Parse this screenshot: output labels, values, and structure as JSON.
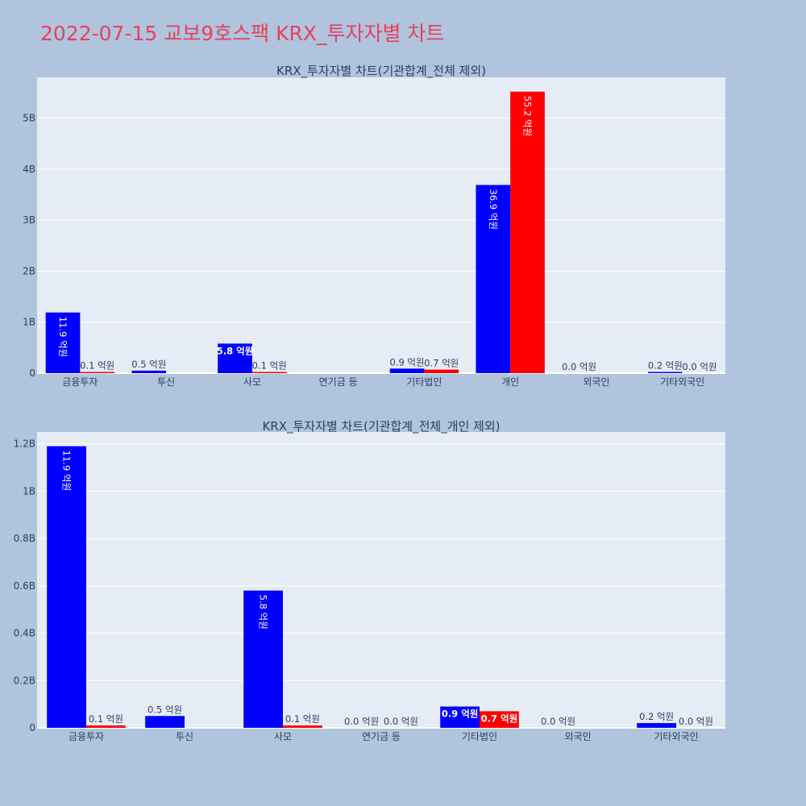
{
  "title": "2022-07-15 교보9호스팩 KRX_투자자별 차트",
  "colors": {
    "page_bg": "#b0c4de",
    "plot_bg": "#e5ecf6",
    "series_a": "#0000ff",
    "series_b": "#ff0000",
    "title": "#e8405a",
    "text": "#2a3f5f"
  },
  "chart_data": [
    {
      "type": "bar",
      "title": "KRX_투자자별 차트(기관합계_전체 제외)",
      "categories": [
        "금융투자",
        "투신",
        "사모",
        "연기금 등",
        "기타법인",
        "개인",
        "외국인",
        "기타외국인"
      ],
      "ylim": [
        0,
        5800000000
      ],
      "yticks": [
        0,
        1000000000,
        2000000000,
        3000000000,
        4000000000,
        5000000000
      ],
      "ytick_labels": [
        "0",
        "1B",
        "2B",
        "3B",
        "4B",
        "5B"
      ],
      "grid": true,
      "series": [
        {
          "color": "#0000ff",
          "values": [
            1190000000,
            50000000,
            580000000,
            0,
            90000000,
            3690000000,
            0,
            20000000
          ],
          "labels": [
            "11.9 억원",
            "0.5 억원",
            "5.8 억원",
            "",
            "0.9 억원",
            "36.9 억원",
            "0.0 억원",
            "0.2 억원"
          ],
          "label_pos": [
            "inside-v",
            "outside",
            "inside-h",
            "none",
            "outside",
            "inside-v",
            "outside",
            "outside"
          ]
        },
        {
          "color": "#ff0000",
          "values": [
            10000000,
            0,
            10000000,
            0,
            70000000,
            5520000000,
            0,
            0
          ],
          "labels": [
            "0.1 억원",
            "",
            "0.1 억원",
            "",
            "0.7 억원",
            "55.2 억원",
            "",
            "0.0 억원"
          ],
          "label_pos": [
            "outside",
            "none",
            "outside",
            "none",
            "outside",
            "inside-v",
            "none",
            "outside"
          ]
        }
      ]
    },
    {
      "type": "bar",
      "title": "KRX_투자자별 차트(기관합계_전체_개인 제외)",
      "categories": [
        "금융투자",
        "투신",
        "사모",
        "연기금 등",
        "기타법인",
        "외국인",
        "기타외국인"
      ],
      "ylim": [
        0,
        1250000000
      ],
      "yticks": [
        0,
        200000000,
        400000000,
        600000000,
        800000000,
        1000000000,
        1200000000
      ],
      "ytick_labels": [
        "0",
        "0.2B",
        "0.4B",
        "0.6B",
        "0.8B",
        "1B",
        "1.2B"
      ],
      "grid": true,
      "series": [
        {
          "color": "#0000ff",
          "values": [
            1190000000,
            50000000,
            580000000,
            0,
            90000000,
            0,
            20000000
          ],
          "labels": [
            "11.9 억원",
            "0.5 억원",
            "5.8 억원",
            "0.0 억원",
            "0.9 억원",
            "0.0 억원",
            "0.2 억원"
          ],
          "label_pos": [
            "inside-v",
            "outside",
            "inside-v",
            "outside",
            "inside-h",
            "outside",
            "outside"
          ]
        },
        {
          "color": "#ff0000",
          "values": [
            10000000,
            0,
            10000000,
            0,
            70000000,
            0,
            0
          ],
          "labels": [
            "0.1 억원",
            "",
            "0.1 억원",
            "0.0 억원",
            "0.7 억원",
            "",
            "0.0 억원"
          ],
          "label_pos": [
            "outside",
            "none",
            "outside",
            "outside",
            "inside-h",
            "none",
            "outside"
          ]
        }
      ]
    }
  ]
}
